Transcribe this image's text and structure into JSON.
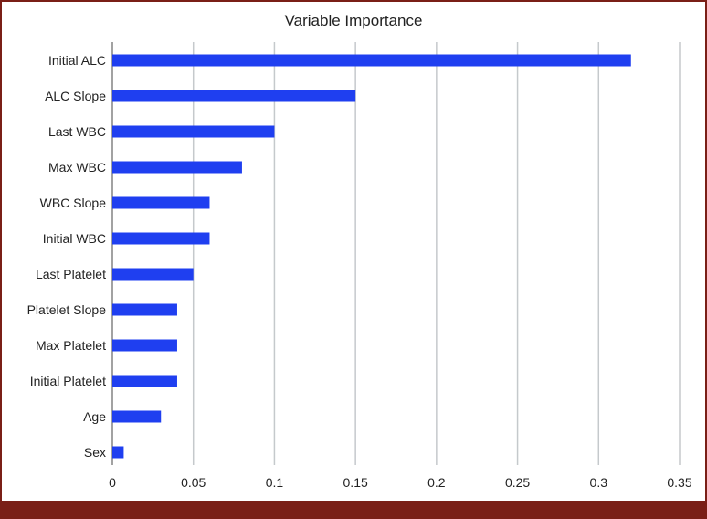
{
  "chart_data": {
    "type": "bar",
    "orientation": "horizontal",
    "title": "Variable Importance",
    "xlabel": "",
    "ylabel": "",
    "categories": [
      "Initial ALC",
      "ALC Slope",
      "Last WBC",
      "Max WBC",
      "WBC Slope",
      "Initial WBC",
      "Last Platelet",
      "Platelet Slope",
      "Max Platelet",
      "Initial Platelet",
      "Age",
      "Sex"
    ],
    "values": [
      0.32,
      0.15,
      0.1,
      0.08,
      0.06,
      0.06,
      0.05,
      0.04,
      0.04,
      0.04,
      0.03,
      0.007
    ],
    "xlim": [
      0,
      0.35
    ],
    "xticks": [
      "0",
      "0.05",
      "0.1",
      "0.15",
      "0.2",
      "0.25",
      "0.3",
      "0.35"
    ],
    "grid": "vertical",
    "legend": "none",
    "bar_color": "#1f3ff0",
    "grid_color": "#c5c9cc",
    "frame_color": "#7a1f17"
  }
}
